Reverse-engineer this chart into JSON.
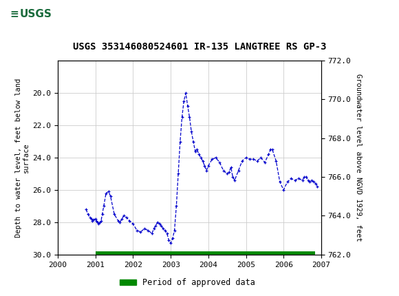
{
  "title": "USGS 353146080524601 IR-135 LANGTREE RS GP-3",
  "ylabel_left": "Depth to water level, feet below land\nsurface",
  "ylabel_right": "Groundwater level above NGVD 1929, feet",
  "xlim": [
    2000,
    2007
  ],
  "ylim_left": [
    30.0,
    18.0
  ],
  "ylim_right": [
    762.0,
    772.0
  ],
  "yticks_left": [
    20.0,
    22.0,
    24.0,
    26.0,
    28.0,
    30.0
  ],
  "yticks_right": [
    762.0,
    764.0,
    766.0,
    768.0,
    770.0,
    772.0
  ],
  "xticks": [
    2000,
    2001,
    2002,
    2003,
    2004,
    2005,
    2006,
    2007
  ],
  "line_color": "#0000CC",
  "marker": "+",
  "linestyle": "--",
  "legend_label": "Period of approved data",
  "legend_color": "#008800",
  "header_bg": "#1a6b3c",
  "grid_color": "#CCCCCC",
  "data_x": [
    2000.75,
    2000.8,
    2000.85,
    2000.9,
    2000.92,
    2000.95,
    2001.0,
    2001.02,
    2001.05,
    2001.08,
    2001.12,
    2001.15,
    2001.18,
    2001.22,
    2001.28,
    2001.35,
    2001.4,
    2001.5,
    2001.6,
    2001.65,
    2001.7,
    2001.75,
    2001.82,
    2001.9,
    2002.0,
    2002.1,
    2002.2,
    2002.3,
    2002.4,
    2002.5,
    2002.55,
    2002.6,
    2002.65,
    2002.7,
    2002.75,
    2002.8,
    2002.85,
    2002.9,
    2002.95,
    2003.0,
    2003.05,
    2003.1,
    2003.15,
    2003.2,
    2003.25,
    2003.3,
    2003.35,
    2003.4,
    2003.45,
    2003.5,
    2003.55,
    2003.6,
    2003.65,
    2003.7,
    2003.75,
    2003.8,
    2003.85,
    2003.9,
    2003.95,
    2004.0,
    2004.1,
    2004.2,
    2004.3,
    2004.4,
    2004.5,
    2004.55,
    2004.6,
    2004.65,
    2004.7,
    2004.8,
    2004.9,
    2005.0,
    2005.1,
    2005.2,
    2005.3,
    2005.4,
    2005.5,
    2005.6,
    2005.65,
    2005.7,
    2005.8,
    2005.9,
    2006.0,
    2006.1,
    2006.2,
    2006.3,
    2006.4,
    2006.5,
    2006.55,
    2006.6,
    2006.65,
    2006.7,
    2006.75,
    2006.8,
    2006.85,
    2006.9
  ],
  "data_y": [
    27.2,
    27.5,
    27.7,
    27.8,
    27.9,
    27.85,
    27.8,
    27.9,
    28.0,
    28.1,
    28.0,
    27.9,
    27.5,
    27.0,
    26.2,
    26.1,
    26.4,
    27.5,
    27.9,
    28.0,
    27.8,
    27.6,
    27.7,
    27.9,
    28.1,
    28.5,
    28.6,
    28.4,
    28.5,
    28.7,
    28.4,
    28.2,
    28.0,
    28.1,
    28.2,
    28.4,
    28.5,
    28.7,
    29.1,
    29.3,
    29.0,
    28.5,
    27.0,
    25.0,
    23.0,
    21.5,
    20.5,
    20.0,
    20.8,
    21.5,
    22.4,
    23.0,
    23.6,
    23.5,
    23.8,
    24.0,
    24.2,
    24.5,
    24.8,
    24.5,
    24.1,
    24.0,
    24.3,
    24.8,
    25.0,
    24.9,
    24.6,
    25.2,
    25.4,
    24.8,
    24.2,
    24.0,
    24.1,
    24.1,
    24.2,
    24.0,
    24.3,
    23.8,
    23.5,
    23.5,
    24.2,
    25.5,
    26.0,
    25.5,
    25.3,
    25.4,
    25.3,
    25.4,
    25.2,
    25.2,
    25.4,
    25.5,
    25.4,
    25.5,
    25.6,
    25.8
  ],
  "green_bar_start": 2001.0,
  "green_bar_end": 2006.83
}
